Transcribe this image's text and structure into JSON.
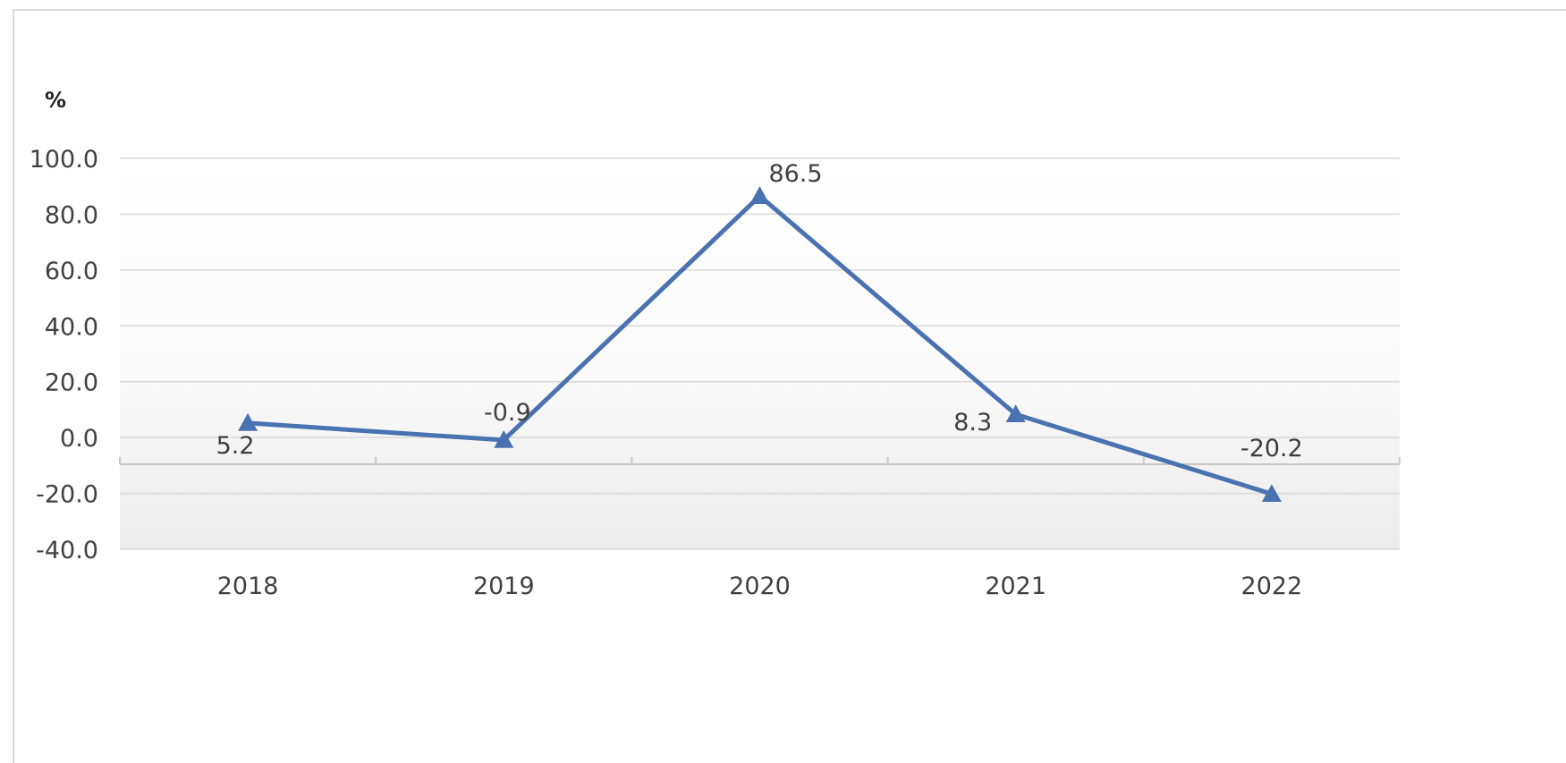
{
  "chart_data": {
    "type": "line",
    "ylabel": "%",
    "categories": [
      "2018",
      "2019",
      "2020",
      "2021",
      "2022"
    ],
    "series": [
      {
        "values": [
          5.2,
          -0.9,
          86.5,
          8.3,
          -20.2
        ],
        "data_labels": [
          "5.2",
          "-0.9",
          "86.5",
          "8.3",
          "-20.2"
        ]
      }
    ],
    "ylim": [
      -40,
      100
    ],
    "yticks": [
      -40,
      -20,
      0,
      20,
      40,
      60,
      80,
      100
    ],
    "ytick_labels": [
      "-40.0",
      "-20.0",
      "0.0",
      "20.0",
      "40.0",
      "60.0",
      "80.0",
      "100.0"
    ],
    "grid": true,
    "marker": "triangle",
    "line_color": "#4a72b0",
    "grid_color": "#d9d9d9",
    "legend": "none"
  }
}
